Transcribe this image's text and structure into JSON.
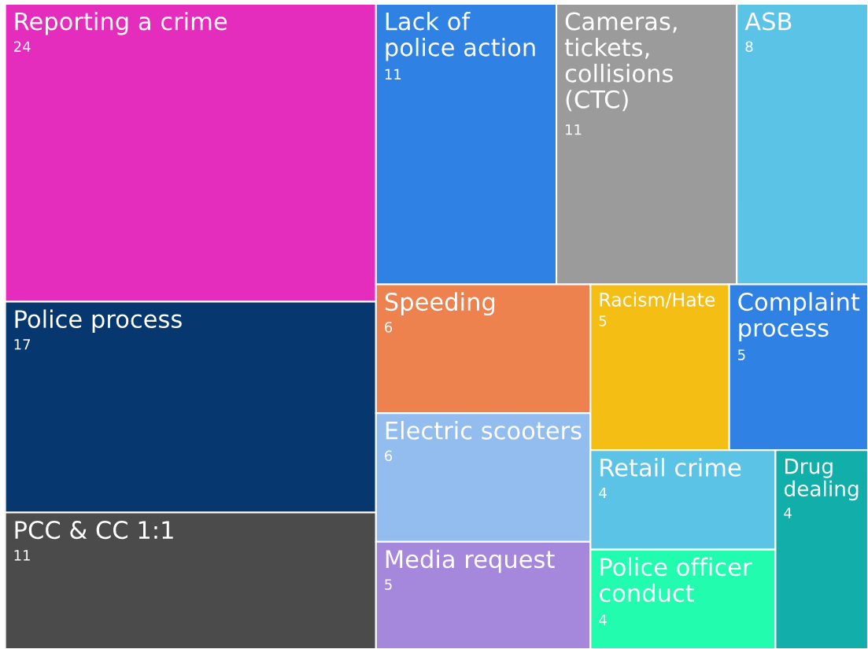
{
  "chart_data": {
    "type": "other",
    "categories": [
      "Reporting a crime",
      "Police process",
      "PCC & CC 1:1",
      "Lack of police action",
      "Cameras, tickets, collisions (CTC)",
      "ASB",
      "Speeding",
      "Electric scooters",
      "Media request",
      "Racism/Hate",
      "Complaint process",
      "Retail crime",
      "Police officer conduct",
      "Drug dealing"
    ],
    "values": [
      24,
      17,
      11,
      11,
      11,
      8,
      6,
      6,
      5,
      5,
      5,
      4,
      4,
      4
    ],
    "colors": [
      "#e52dbd",
      "#07376f",
      "#4b4b4b",
      "#2f82e3",
      "#9b9b9b",
      "#5bc3e6",
      "#ee824f",
      "#93bdee",
      "#a587dc",
      "#f4be15",
      "#2f82e3",
      "#5bc3e6",
      "#21fcaf",
      "#12aeaa"
    ],
    "data_labels": true
  }
}
